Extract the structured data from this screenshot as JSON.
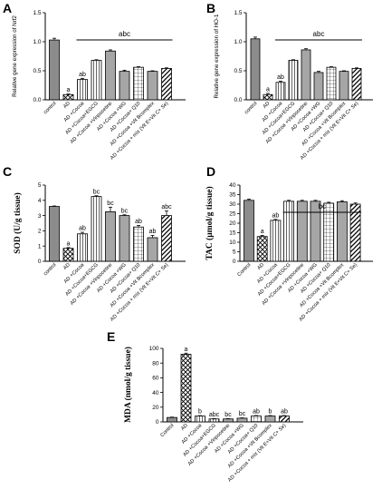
{
  "panels": [
    {
      "letter": "A",
      "chart_data": {
        "type": "bar",
        "ylabel": "Relative gene expression of Nrf2",
        "ylim": [
          0,
          1.5
        ],
        "yticks": [
          "0.0",
          "0.5",
          "1.0",
          "1.5"
        ],
        "categories": [
          "control",
          "AD",
          "AD +Cocoa",
          "AD +Cocoa+EGCG",
          "AD +Cocoa +Vinpocetine",
          "AD +Cocoa +WG",
          "AD +Cocoa+ Q10",
          "AD +Cocoa +Vit Bcomplex",
          "AD +Cocoa + mix (Vit E+Vit C+ Se)"
        ],
        "values": [
          1.03,
          0.09,
          0.35,
          0.68,
          0.84,
          0.49,
          0.56,
          0.49,
          0.54
        ],
        "errors": [
          0.03,
          0.01,
          0.02,
          0.01,
          0.02,
          0.02,
          0.01,
          0.01,
          0.01
        ],
        "patterns": [
          "solid",
          "cross",
          "vlines",
          "vlines",
          "solid",
          "solid",
          "grid",
          "solid",
          "diag"
        ],
        "bar_labels": [
          "",
          "a",
          "ab",
          "",
          "",
          "",
          "",
          "",
          ""
        ],
        "bracket_label": "abc",
        "bracket_range": [
          2,
          8
        ]
      }
    },
    {
      "letter": "B",
      "chart_data": {
        "type": "bar",
        "ylabel": "Relative gene expression of HO-1",
        "ylim": [
          0,
          1.5
        ],
        "yticks": [
          "0.0",
          "0.5",
          "1.0",
          "1.5"
        ],
        "categories": [
          "control",
          "AD",
          "AD +Cocoa",
          "AD +Cocoa+EGCG",
          "AD +Cocoa +Vinpocetine",
          "AD +Cocoa +WG",
          "AD +Cocoa+ Q10",
          "AD +Cocoa +Vit Bcomplex",
          "AD +Cocoa + mix (Vit E+Vit C+ Se)"
        ],
        "values": [
          1.05,
          0.09,
          0.3,
          0.68,
          0.86,
          0.47,
          0.56,
          0.49,
          0.54
        ],
        "errors": [
          0.03,
          0.02,
          0.02,
          0.01,
          0.02,
          0.02,
          0.01,
          0.01,
          0.01
        ],
        "patterns": [
          "solid",
          "cross",
          "vlines",
          "vlines",
          "solid",
          "solid",
          "grid",
          "solid",
          "diag"
        ],
        "bar_labels": [
          "",
          "a",
          "ab",
          "",
          "",
          "",
          "",
          "",
          ""
        ],
        "bracket_label": "abc",
        "bracket_range": [
          2,
          8
        ]
      }
    },
    {
      "letter": "C",
      "chart_data": {
        "type": "bar",
        "ylabel": "SOD (U/g tissue)",
        "ylim": [
          0,
          5
        ],
        "yticks": [
          "0",
          "1",
          "2",
          "3",
          "4",
          "5"
        ],
        "categories": [
          "control",
          "AD",
          "AD +Cocoa",
          "AD +Cocoa+EGCG",
          "AD +Cocoa +Vinpocetine",
          "AD +Cocoa +WG",
          "AD +Cocoa+ Q10",
          "AD +Cocoa +Vit Bcomplex",
          "AD +Cocoa + mix (Vit E+Vit C+ Se)"
        ],
        "values": [
          3.6,
          0.85,
          1.8,
          4.25,
          3.25,
          3.0,
          2.25,
          1.55,
          3.0
        ],
        "errors": [
          0.03,
          0.05,
          0.1,
          0.05,
          0.3,
          0.05,
          0.1,
          0.15,
          0.3
        ],
        "patterns": [
          "solid",
          "cross",
          "vlines",
          "vlines",
          "solid",
          "solid",
          "grid",
          "solid",
          "diag"
        ],
        "bar_labels": [
          "",
          "a",
          "ab",
          "bc",
          "bc",
          "bc",
          "ab",
          "ab",
          "abc"
        ],
        "bracket_label": "",
        "bracket_range": null
      }
    },
    {
      "letter": "D",
      "chart_data": {
        "type": "bar",
        "ylabel": "TAC (µmol/g tissue)",
        "ylim": [
          0,
          40
        ],
        "yticks": [
          "0",
          "5",
          "10",
          "15",
          "20",
          "25",
          "30",
          "35",
          "40"
        ],
        "categories": [
          "Control",
          "AD",
          "AD +Cocoa",
          "AD +Cocoa+EGCG",
          "AD +Cocoa +Vinpocetine",
          "AD +Cocoa +WG",
          "AD +Cocoa+ Q10",
          "AD +Cocoa +Vit Bcomplex",
          "AD +Cocoa + mix (Vit E+Vit C+ Se)"
        ],
        "values": [
          32,
          13,
          21.5,
          31.5,
          31.5,
          31.5,
          30.5,
          31.2,
          30.0
        ],
        "errors": [
          0.6,
          0.6,
          0.5,
          0.5,
          0.5,
          0.5,
          0.5,
          0.6,
          0.6
        ],
        "patterns": [
          "solid",
          "cross",
          "vlines",
          "vlines",
          "solid",
          "solid",
          "grid",
          "solid",
          "diag"
        ],
        "bar_labels": [
          "",
          "a",
          "ab",
          "",
          "",
          "",
          "",
          "",
          ""
        ],
        "bracket_label": "bc",
        "bracket_range": [
          3,
          8
        ]
      }
    },
    {
      "letter": "E",
      "chart_data": {
        "type": "bar",
        "ylabel": "MDA (nmol/g tissue)",
        "ylim": [
          0,
          100
        ],
        "yticks": [
          "0",
          "20",
          "40",
          "60",
          "80",
          "100"
        ],
        "categories": [
          "Control",
          "AD",
          "AD +Cocoa",
          "AD +Cocoa+EGCG",
          "AD +Cocoa +Vinpocetine",
          "AD +Cocoa +WG",
          "AD +Cocoa+ Q10",
          "AD +Cocoa +Vit Bcomplex",
          "AD +Cocoa + mix (Vit E+Vit C+ Se)"
        ],
        "values": [
          6,
          92,
          8,
          4,
          4,
          5,
          8,
          8,
          8
        ],
        "errors": [
          0.5,
          1.5,
          0.5,
          0.4,
          0.4,
          0.5,
          0.6,
          0.6,
          0.6
        ],
        "patterns": [
          "solid",
          "cross",
          "vlines",
          "vlines",
          "solid",
          "solid",
          "grid",
          "solid",
          "diag"
        ],
        "bar_labels": [
          "",
          "a",
          "b",
          "abc",
          "bc",
          "bc",
          "ab",
          "b",
          "ab"
        ],
        "bracket_label": "",
        "bracket_range": null
      }
    }
  ],
  "colors": {
    "axis": "#000000",
    "bar_fill_control": "#8c8c8c",
    "bar_fill_solid": "#a6a6a6",
    "bar_stroke": "#000000"
  }
}
